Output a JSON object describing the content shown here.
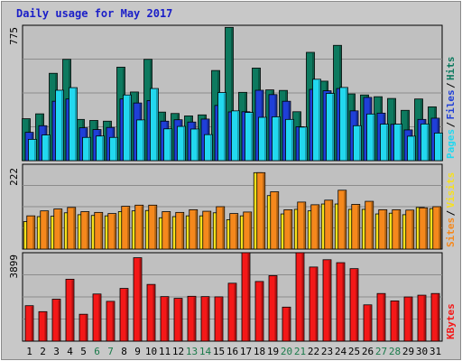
{
  "chart_data": {
    "type": "bar",
    "title": "Daily usage for May 2017",
    "categories": [
      "1",
      "2",
      "3",
      "4",
      "5",
      "6",
      "7",
      "8",
      "9",
      "10",
      "11",
      "12",
      "13",
      "14",
      "15",
      "16",
      "17",
      "18",
      "19",
      "20",
      "21",
      "22",
      "23",
      "24",
      "25",
      "26",
      "27",
      "28",
      "29",
      "30",
      "31"
    ],
    "weekend_days": [
      "6",
      "7",
      "13",
      "14",
      "20",
      "21",
      "27",
      "28"
    ],
    "panels": [
      {
        "id": "hits-files-pages",
        "max_label": "775",
        "ylim": [
          0,
          775
        ],
        "side_labels": [
          "Pages",
          "Files",
          "Hits"
        ],
        "series": [
          {
            "name": "Hits",
            "color": "#0d7a5f",
            "values": [
              240,
              268,
              500,
              580,
              236,
              230,
              226,
              535,
              393,
              580,
              278,
              270,
              256,
              262,
              516,
              763,
              391,
              530,
              405,
              402,
              280,
              620,
              455,
              660,
              382,
              376,
              366,
              356,
              288,
              353,
              308
            ]
          },
          {
            "name": "Files",
            "color": "#1f3fd8",
            "values": [
              162,
              200,
              340,
              353,
              188,
              178,
              190,
              353,
              330,
              344,
              226,
              234,
              221,
              238,
              316,
              279,
              280,
              403,
              378,
              340,
              194,
              408,
              400,
              413,
              285,
              362,
              272,
              208,
              176,
              236,
              243
            ]
          },
          {
            "name": "Pages",
            "color": "#22d8ef",
            "values": [
              122,
              147,
              403,
              418,
              133,
              141,
              133,
              376,
              233,
              413,
              182,
              196,
              181,
              149,
              390,
              285,
              276,
              248,
              251,
              236,
              192,
              466,
              385,
              419,
              200,
              267,
              209,
              209,
              140,
              210,
              158
            ]
          }
        ]
      },
      {
        "id": "visits-sites",
        "max_label": "222",
        "ylim": [
          0,
          222
        ],
        "side_labels": [
          "Sites",
          "Visits"
        ],
        "series": [
          {
            "name": "Visits",
            "color": "#f7e11c",
            "values": [
              72,
              85,
              86,
              95,
              90,
              88,
              87,
              98,
              100,
              101,
              82,
              85,
              87,
              87,
              95,
              77,
              87,
              200,
              140,
              92,
              104,
              100,
              118,
              118,
              104,
              104,
              92,
              94,
              90,
              109,
              106
            ]
          },
          {
            "name": "Sites",
            "color": "#f5881c",
            "values": [
              87,
              100,
              105,
              109,
              98,
              96,
              93,
              112,
              115,
              115,
              98,
              96,
              103,
              99,
              111,
              93,
              97,
              200,
              150,
              103,
              123,
              116,
              128,
              154,
              117,
              125,
              103,
              103,
              102,
              108,
              111
            ]
          }
        ]
      },
      {
        "id": "kbytes",
        "max_label": "3899",
        "ylim": [
          0,
          3899
        ],
        "side_labels": [
          "KBytes"
        ],
        "series": [
          {
            "name": "KBytes",
            "color": "#f41818",
            "values": [
              1563,
              1300,
              1850,
              2730,
              1186,
              2078,
              1755,
              2325,
              3678,
              2500,
              1963,
              1886,
              1977,
              1963,
              1953,
              2553,
              3899,
              2630,
              2887,
              1500,
              3899,
              3267,
              3589,
              3460,
              3196,
              1600,
              2100,
              1774,
              1948,
              2026,
              2100
            ]
          }
        ]
      }
    ]
  }
}
